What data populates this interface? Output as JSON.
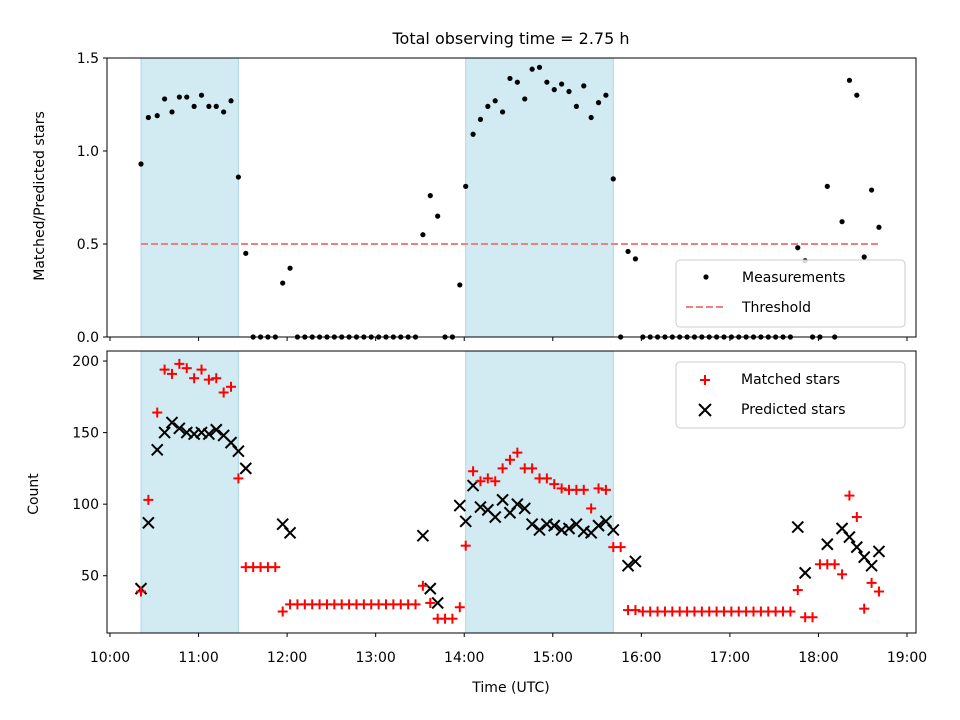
{
  "colors": {
    "shade": "#add8e6",
    "measurement": "#000000",
    "threshold": "#f08080",
    "matched": "#ff0000",
    "predicted": "#000000"
  },
  "chart_data": [
    {
      "type": "scatter",
      "title": "Total observing time = 2.75 h",
      "xlabel": "",
      "ylabel": "Matched/Predicted stars",
      "xlim": [
        "10:00",
        "19:00"
      ],
      "ylim": [
        0,
        1.5
      ],
      "yticks": [
        "0.0",
        "0.5",
        "1.0",
        "1.5"
      ],
      "legend_position": "lower-right",
      "shaded_intervals": [
        [
          "10:21",
          "11:27"
        ],
        [
          "14:01",
          "15:41"
        ]
      ],
      "threshold": {
        "name": "Threshold",
        "value": 0.5,
        "x_range": [
          "10:21",
          "18:41"
        ],
        "style": "dashed"
      },
      "series": [
        {
          "name": "Measurements",
          "marker": "dot",
          "points": [
            [
              "10:21",
              0.93
            ],
            [
              "10:26",
              1.18
            ],
            [
              "10:32",
              1.19
            ],
            [
              "10:37",
              1.28
            ],
            [
              "10:42",
              1.21
            ],
            [
              "10:47",
              1.29
            ],
            [
              "10:52",
              1.29
            ],
            [
              "10:57",
              1.24
            ],
            [
              "11:02",
              1.3
            ],
            [
              "11:07",
              1.24
            ],
            [
              "11:12",
              1.24
            ],
            [
              "11:17",
              1.21
            ],
            [
              "11:22",
              1.27
            ],
            [
              "11:27",
              0.86
            ],
            [
              "11:32",
              0.45
            ],
            [
              "11:37",
              0
            ],
            [
              "11:42",
              0
            ],
            [
              "11:47",
              0
            ],
            [
              "11:52",
              0
            ],
            [
              "11:57",
              0.29
            ],
            [
              "12:02",
              0.37
            ],
            [
              "12:07",
              0
            ],
            [
              "12:12",
              0
            ],
            [
              "12:17",
              0
            ],
            [
              "12:22",
              0
            ],
            [
              "12:27",
              0
            ],
            [
              "12:32",
              0
            ],
            [
              "12:37",
              0
            ],
            [
              "12:42",
              0
            ],
            [
              "12:47",
              0
            ],
            [
              "12:52",
              0
            ],
            [
              "12:57",
              0
            ],
            [
              "13:02",
              0
            ],
            [
              "13:07",
              0
            ],
            [
              "13:12",
              0
            ],
            [
              "13:17",
              0
            ],
            [
              "13:22",
              0
            ],
            [
              "13:27",
              0
            ],
            [
              "13:32",
              0.55
            ],
            [
              "13:37",
              0.76
            ],
            [
              "13:42",
              0.65
            ],
            [
              "13:47",
              0
            ],
            [
              "13:52",
              0
            ],
            [
              "13:57",
              0.28
            ],
            [
              "14:01",
              0.81
            ],
            [
              "14:06",
              1.09
            ],
            [
              "14:11",
              1.17
            ],
            [
              "14:16",
              1.24
            ],
            [
              "14:21",
              1.27
            ],
            [
              "14:26",
              1.21
            ],
            [
              "14:31",
              1.39
            ],
            [
              "14:36",
              1.37
            ],
            [
              "14:41",
              1.28
            ],
            [
              "14:46",
              1.44
            ],
            [
              "14:51",
              1.45
            ],
            [
              "14:56",
              1.37
            ],
            [
              "15:01",
              1.33
            ],
            [
              "15:06",
              1.36
            ],
            [
              "15:11",
              1.32
            ],
            [
              "15:16",
              1.24
            ],
            [
              "15:21",
              1.35
            ],
            [
              "15:26",
              1.18
            ],
            [
              "15:31",
              1.26
            ],
            [
              "15:36",
              1.3
            ],
            [
              "15:41",
              0.85
            ],
            [
              "15:46",
              0
            ],
            [
              "15:51",
              0.46
            ],
            [
              "15:56",
              0.42
            ],
            [
              "16:01",
              0
            ],
            [
              "16:06",
              0
            ],
            [
              "16:11",
              0
            ],
            [
              "16:16",
              0
            ],
            [
              "16:21",
              0
            ],
            [
              "16:26",
              0
            ],
            [
              "16:31",
              0
            ],
            [
              "16:36",
              0
            ],
            [
              "16:41",
              0
            ],
            [
              "16:46",
              0
            ],
            [
              "16:51",
              0
            ],
            [
              "16:56",
              0
            ],
            [
              "17:01",
              0
            ],
            [
              "17:06",
              0
            ],
            [
              "17:11",
              0
            ],
            [
              "17:16",
              0
            ],
            [
              "17:21",
              0
            ],
            [
              "17:26",
              0
            ],
            [
              "17:31",
              0
            ],
            [
              "17:36",
              0
            ],
            [
              "17:41",
              0
            ],
            [
              "17:46",
              0.48
            ],
            [
              "17:51",
              0.41
            ],
            [
              "17:56",
              0
            ],
            [
              "18:01",
              0
            ],
            [
              "18:06",
              0.81
            ],
            [
              "18:11",
              0
            ],
            [
              "18:16",
              0.62
            ],
            [
              "18:21",
              1.38
            ],
            [
              "18:26",
              1.3
            ],
            [
              "18:31",
              0.43
            ],
            [
              "18:36",
              0.79
            ],
            [
              "18:41",
              0.59
            ]
          ]
        }
      ]
    },
    {
      "type": "scatter",
      "title": "",
      "xlabel": "Time (UTC)",
      "ylabel": "Count",
      "xlim": [
        "10:00",
        "19:00"
      ],
      "ylim": [
        10,
        207
      ],
      "xticks": [
        "10:00",
        "11:00",
        "12:00",
        "13:00",
        "14:00",
        "15:00",
        "16:00",
        "17:00",
        "18:00",
        "19:00"
      ],
      "yticks": [
        "50",
        "100",
        "150",
        "200"
      ],
      "legend_position": "upper-right",
      "shaded_intervals": [
        [
          "10:21",
          "11:27"
        ],
        [
          "14:01",
          "15:41"
        ]
      ],
      "series": [
        {
          "name": "Matched stars",
          "marker": "plus",
          "points": [
            [
              "10:21",
              39
            ],
            [
              "10:26",
              103
            ],
            [
              "10:32",
              164
            ],
            [
              "10:37",
              194
            ],
            [
              "10:42",
              191
            ],
            [
              "10:47",
              198
            ],
            [
              "10:52",
              195
            ],
            [
              "10:57",
              188
            ],
            [
              "11:02",
              194
            ],
            [
              "11:07",
              187
            ],
            [
              "11:12",
              188
            ],
            [
              "11:17",
              178
            ],
            [
              "11:22",
              182
            ],
            [
              "11:27",
              118
            ],
            [
              "11:32",
              56
            ],
            [
              "11:37",
              56
            ],
            [
              "11:42",
              56
            ],
            [
              "11:47",
              56
            ],
            [
              "11:52",
              56
            ],
            [
              "11:57",
              25
            ],
            [
              "12:02",
              30
            ],
            [
              "12:07",
              30
            ],
            [
              "12:12",
              30
            ],
            [
              "12:17",
              30
            ],
            [
              "12:22",
              30
            ],
            [
              "12:27",
              30
            ],
            [
              "12:32",
              30
            ],
            [
              "12:37",
              30
            ],
            [
              "12:42",
              30
            ],
            [
              "12:47",
              30
            ],
            [
              "12:52",
              30
            ],
            [
              "12:57",
              30
            ],
            [
              "13:02",
              30
            ],
            [
              "13:07",
              30
            ],
            [
              "13:12",
              30
            ],
            [
              "13:17",
              30
            ],
            [
              "13:22",
              30
            ],
            [
              "13:27",
              30
            ],
            [
              "13:32",
              43
            ],
            [
              "13:37",
              31
            ],
            [
              "13:42",
              20
            ],
            [
              "13:47",
              20
            ],
            [
              "13:52",
              20
            ],
            [
              "13:57",
              28
            ],
            [
              "14:01",
              71
            ],
            [
              "14:06",
              123
            ],
            [
              "14:11",
              116
            ],
            [
              "14:16",
              118
            ],
            [
              "14:21",
              116
            ],
            [
              "14:26",
              125
            ],
            [
              "14:31",
              131
            ],
            [
              "14:36",
              136
            ],
            [
              "14:41",
              125
            ],
            [
              "14:46",
              125
            ],
            [
              "14:51",
              118
            ],
            [
              "14:56",
              118
            ],
            [
              "15:01",
              114
            ],
            [
              "15:06",
              111
            ],
            [
              "15:11",
              110
            ],
            [
              "15:16",
              110
            ],
            [
              "15:21",
              110
            ],
            [
              "15:26",
              97
            ],
            [
              "15:31",
              111
            ],
            [
              "15:36",
              110
            ],
            [
              "15:41",
              70
            ],
            [
              "15:46",
              70
            ],
            [
              "15:51",
              26
            ],
            [
              "15:56",
              26
            ],
            [
              "16:01",
              25
            ],
            [
              "16:06",
              25
            ],
            [
              "16:11",
              25
            ],
            [
              "16:16",
              25
            ],
            [
              "16:21",
              25
            ],
            [
              "16:26",
              25
            ],
            [
              "16:31",
              25
            ],
            [
              "16:36",
              25
            ],
            [
              "16:41",
              25
            ],
            [
              "16:46",
              25
            ],
            [
              "16:51",
              25
            ],
            [
              "16:56",
              25
            ],
            [
              "17:01",
              25
            ],
            [
              "17:06",
              25
            ],
            [
              "17:11",
              25
            ],
            [
              "17:16",
              25
            ],
            [
              "17:21",
              25
            ],
            [
              "17:26",
              25
            ],
            [
              "17:31",
              25
            ],
            [
              "17:36",
              25
            ],
            [
              "17:41",
              25
            ],
            [
              "17:46",
              40
            ],
            [
              "17:51",
              21
            ],
            [
              "17:56",
              21
            ],
            [
              "18:01",
              58
            ],
            [
              "18:06",
              58
            ],
            [
              "18:11",
              58
            ],
            [
              "18:16",
              51
            ],
            [
              "18:21",
              106
            ],
            [
              "18:26",
              91
            ],
            [
              "18:31",
              27
            ],
            [
              "18:36",
              45
            ],
            [
              "18:41",
              39
            ]
          ]
        },
        {
          "name": "Predicted stars",
          "marker": "x",
          "points": [
            [
              "10:21",
              41
            ],
            [
              "10:26",
              87
            ],
            [
              "10:32",
              138
            ],
            [
              "10:37",
              150
            ],
            [
              "10:42",
              157
            ],
            [
              "10:47",
              153
            ],
            [
              "10:52",
              150
            ],
            [
              "10:57",
              149
            ],
            [
              "11:02",
              150
            ],
            [
              "11:07",
              149
            ],
            [
              "11:12",
              152
            ],
            [
              "11:17",
              148
            ],
            [
              "11:22",
              143
            ],
            [
              "11:27",
              137
            ],
            [
              "11:32",
              125
            ],
            [
              "11:57",
              86
            ],
            [
              "12:02",
              80
            ],
            [
              "13:32",
              78
            ],
            [
              "13:37",
              41
            ],
            [
              "13:42",
              31
            ],
            [
              "13:57",
              99
            ],
            [
              "14:01",
              88
            ],
            [
              "14:06",
              113
            ],
            [
              "14:11",
              98
            ],
            [
              "14:16",
              96
            ],
            [
              "14:21",
              91
            ],
            [
              "14:26",
              103
            ],
            [
              "14:31",
              94
            ],
            [
              "14:36",
              100
            ],
            [
              "14:41",
              97
            ],
            [
              "14:46",
              86
            ],
            [
              "14:51",
              82
            ],
            [
              "14:56",
              86
            ],
            [
              "15:01",
              85
            ],
            [
              "15:06",
              82
            ],
            [
              "15:11",
              83
            ],
            [
              "15:16",
              86
            ],
            [
              "15:21",
              81
            ],
            [
              "15:26",
              80
            ],
            [
              "15:31",
              85
            ],
            [
              "15:36",
              88
            ],
            [
              "15:41",
              82
            ],
            [
              "15:51",
              57
            ],
            [
              "15:56",
              60
            ],
            [
              "17:46",
              84
            ],
            [
              "17:51",
              52
            ],
            [
              "18:06",
              72
            ],
            [
              "18:16",
              83
            ],
            [
              "18:21",
              77
            ],
            [
              "18:26",
              70
            ],
            [
              "18:31",
              63
            ],
            [
              "18:36",
              57
            ],
            [
              "18:41",
              67
            ]
          ]
        }
      ]
    }
  ]
}
